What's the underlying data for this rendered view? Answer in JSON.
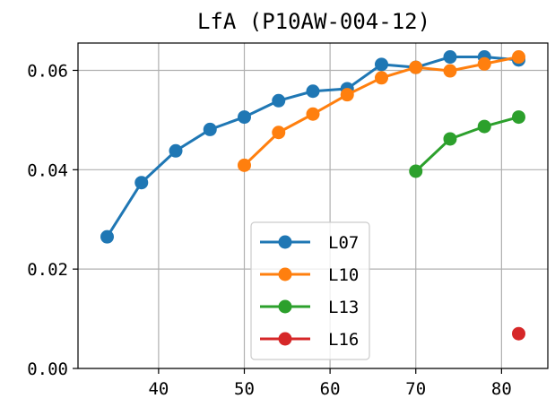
{
  "chart_data": {
    "type": "line",
    "title": "LfA (P10AW-004-12)",
    "xlabel": "",
    "ylabel": "",
    "xlim": [
      30.6,
      85.4
    ],
    "ylim": [
      0.0,
      0.0655
    ],
    "xticks": [
      40,
      50,
      60,
      70,
      80
    ],
    "yticks": [
      0.0,
      0.02,
      0.04,
      0.06
    ],
    "ytick_labels": [
      "0.00",
      "0.02",
      "0.04",
      "0.06"
    ],
    "grid": true,
    "legend_position": "lower-center",
    "series": [
      {
        "name": "L07",
        "color": "#1f77b4",
        "x": [
          34,
          38,
          42,
          46,
          50,
          54,
          58,
          62,
          66,
          70,
          74,
          78,
          82
        ],
        "y": [
          0.0265,
          0.0374,
          0.0438,
          0.0481,
          0.0506,
          0.0539,
          0.0558,
          0.0563,
          0.0612,
          0.0606,
          0.0627,
          0.0627,
          0.0621
        ]
      },
      {
        "name": "L10",
        "color": "#ff7f0e",
        "x": [
          50,
          54,
          58,
          62,
          66,
          70,
          74,
          78,
          82
        ],
        "y": [
          0.0409,
          0.0475,
          0.0512,
          0.0551,
          0.0585,
          0.0606,
          0.0599,
          0.0613,
          0.0627
        ]
      },
      {
        "name": "L13",
        "color": "#2ca02c",
        "x": [
          70,
          74,
          78,
          82
        ],
        "y": [
          0.0397,
          0.0462,
          0.0487,
          0.0506
        ]
      },
      {
        "name": "L16",
        "color": "#d62728",
        "x": [
          82
        ],
        "y": [
          0.007
        ]
      }
    ]
  }
}
